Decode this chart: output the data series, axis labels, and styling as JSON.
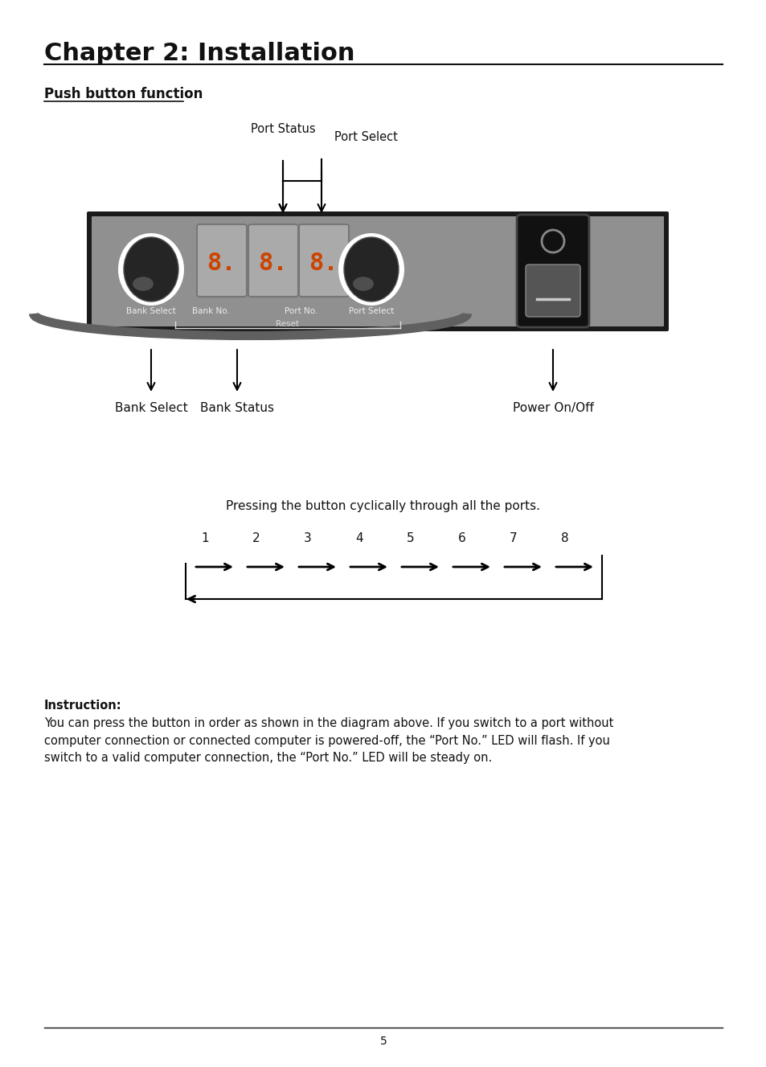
{
  "title": "Chapter 2: Installation",
  "subtitle": "Push button function",
  "page_number": "5",
  "bg_color": "#ffffff",
  "pressing_text": "Pressing the button cyclically through all the ports.",
  "instruction_title": "Instruction:",
  "instruction_body": "You can press the button in order as shown in the diagram above. If you switch to a port without\ncomputer connection or connected computer is powered-off, the “Port No.” LED will flash. If you\nswitch to a valid computer connection, the “Port No.” LED will be steady on.",
  "port_labels": [
    "1",
    "2",
    "3",
    "4",
    "5",
    "6",
    "7",
    "8"
  ],
  "label_port_status": "Port Status",
  "label_port_select": "Port Select",
  "label_bank_select": "Bank Select",
  "label_bank_status": "Bank Status",
  "label_power": "Power On/Off",
  "panel_labels": [
    "Bank Select",
    "Bank No.",
    "Port No.",
    "Port Select"
  ],
  "reset_label": "Reset"
}
